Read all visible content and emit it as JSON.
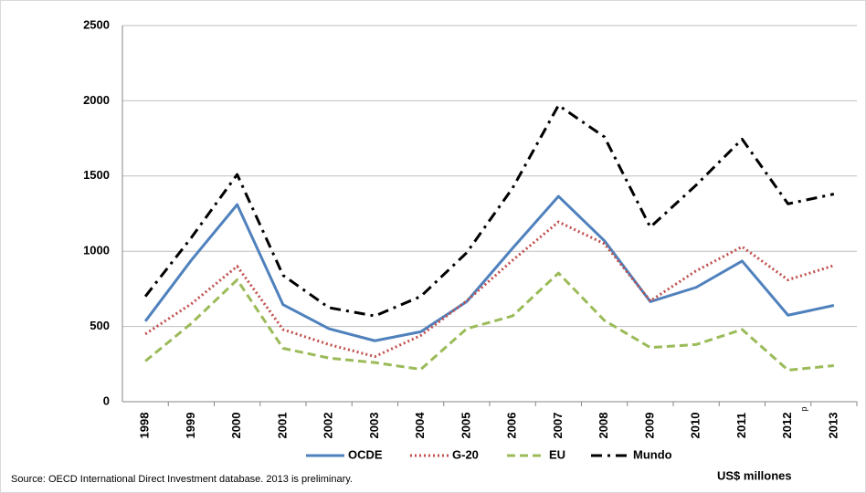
{
  "chart_data": {
    "type": "line",
    "categories": [
      "1998",
      "1999",
      "2000",
      "2001",
      "2002",
      "2003",
      "2004",
      "2005",
      "2006",
      "2007",
      "2008",
      "2009",
      "2010",
      "2011",
      "2012",
      "2013"
    ],
    "category_note": "p",
    "series": [
      {
        "name": "OCDE",
        "color": "#4f81bd",
        "line_style": "solid",
        "values": [
          535,
          940,
          1310,
          645,
          485,
          405,
          465,
          665,
          1020,
          1365,
          1070,
          665,
          760,
          935,
          575,
          640
        ]
      },
      {
        "name": "G-20",
        "color": "#c0504d",
        "line_style": "dotted",
        "values": [
          450,
          650,
          900,
          480,
          380,
          300,
          440,
          670,
          940,
          1195,
          1050,
          670,
          870,
          1030,
          810,
          905
        ]
      },
      {
        "name": "EU",
        "color": "#9bbb59",
        "line_style": "dashed",
        "values": [
          270,
          520,
          810,
          355,
          290,
          260,
          215,
          485,
          570,
          855,
          540,
          360,
          380,
          480,
          210,
          240
        ]
      },
      {
        "name": "Mundo",
        "color": "#000000",
        "line_style": "dashdot",
        "values": [
          700,
          1090,
          1510,
          840,
          625,
          570,
          700,
          990,
          1420,
          1970,
          1760,
          1160,
          1440,
          1745,
          1315,
          1380
        ]
      }
    ],
    "ylim": [
      0,
      2500
    ],
    "yticks": [
      0,
      500,
      1000,
      1500,
      2000,
      2500
    ],
    "grid": true,
    "legend_position": "bottom",
    "source": "Source: OECD International Direct Investment database. 2013 is preliminary.",
    "unit_label": "US$ millones"
  }
}
